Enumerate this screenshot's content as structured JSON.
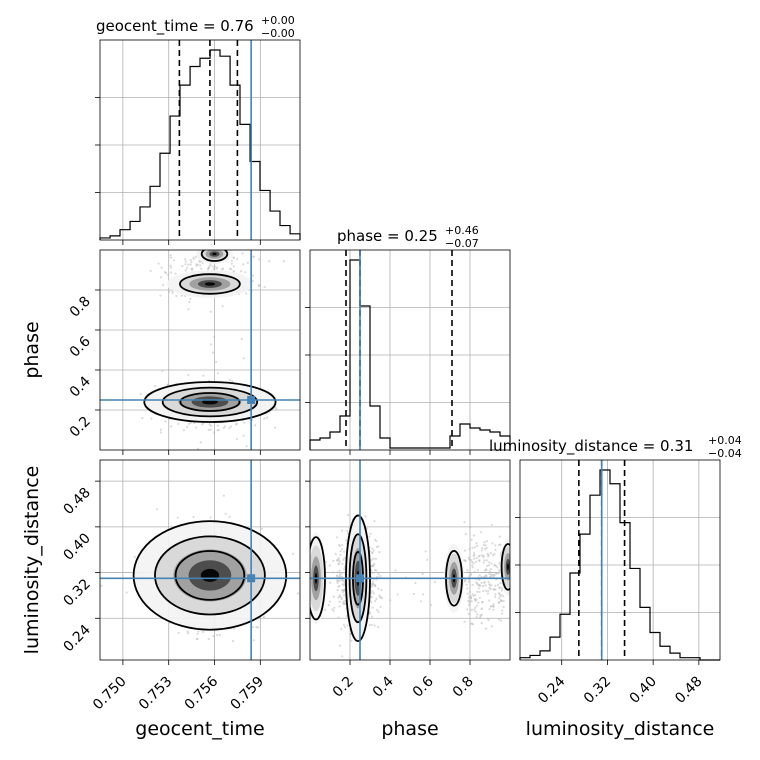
{
  "chart_data": {
    "type": "corner",
    "parameters": [
      "geocent_time",
      "phase",
      "luminosity_distance"
    ],
    "truths": {
      "geocent_time": 0.7584,
      "phase": 0.25,
      "luminosity_distance": 0.31
    },
    "colors": {
      "truth": "#4682b4",
      "lines": "#000000",
      "grid": "#b0b0b0",
      "points": "#bbbbbb"
    },
    "grid": true,
    "titles": {
      "geocent_time": {
        "prefix": "geocent_time = 0.76",
        "plus": "+0.00",
        "minus": "−0.00"
      },
      "phase": {
        "prefix": "phase = 0.25",
        "plus": "+0.46",
        "minus": "−0.07"
      },
      "luminosity_distance": {
        "prefix": "luminosity_distance = 0.31",
        "plus": "+0.04",
        "minus": "−0.04"
      }
    },
    "axes": {
      "geocent_time": {
        "range": [
          0.7485,
          0.7616
        ],
        "ticks": [
          0.75,
          0.753,
          0.756,
          0.759
        ],
        "tick_labels": [
          "0.750",
          "0.753",
          "0.756",
          "0.759"
        ],
        "xlabel": "geocent_time"
      },
      "phase": {
        "range": [
          0.0,
          1.0
        ],
        "ticks": [
          0.2,
          0.4,
          0.6,
          0.8
        ],
        "tick_labels": [
          "0.2",
          "0.4",
          "0.6",
          "0.8"
        ],
        "xlabel": "phase",
        "ylabel": "phase"
      },
      "luminosity_distance": {
        "range": [
          0.167,
          0.517
        ],
        "ticks": [
          0.24,
          0.32,
          0.4,
          0.48
        ],
        "tick_labels": [
          "0.24",
          "0.32",
          "0.40",
          "0.48"
        ],
        "xlabel": "luminosity_distance",
        "ylabel": "luminosity_distance"
      }
    },
    "histograms": {
      "geocent_time": {
        "edges": [
          0.7485,
          0.74916,
          0.74981,
          0.75047,
          0.75112,
          0.75178,
          0.75243,
          0.75309,
          0.75374,
          0.7544,
          0.75505,
          0.75571,
          0.75636,
          0.75702,
          0.75767,
          0.75833,
          0.75898,
          0.75964,
          0.76029,
          0.76095,
          0.7616
        ],
        "counts": [
          0.01,
          0.02,
          0.05,
          0.09,
          0.16,
          0.26,
          0.42,
          0.6,
          0.75,
          0.84,
          0.88,
          0.92,
          0.89,
          0.75,
          0.56,
          0.38,
          0.24,
          0.14,
          0.07,
          0.03
        ],
        "quantiles": [
          0.7537,
          0.7557,
          0.7575
        ]
      },
      "phase": {
        "edges": [
          0.0,
          0.05,
          0.1,
          0.15,
          0.2,
          0.25,
          0.3,
          0.35,
          0.4,
          0.45,
          0.5,
          0.55,
          0.6,
          0.65,
          0.7,
          0.75,
          0.8,
          0.85,
          0.9,
          0.95,
          1.0
        ],
        "counts": [
          0.05,
          0.06,
          0.09,
          0.17,
          0.95,
          0.72,
          0.22,
          0.06,
          0.01,
          0.01,
          0.01,
          0.01,
          0.01,
          0.01,
          0.07,
          0.13,
          0.11,
          0.1,
          0.09,
          0.07
        ],
        "quantiles": [
          0.18,
          0.25,
          0.71
        ]
      },
      "luminosity_distance": {
        "edges": [
          0.167,
          0.1845,
          0.202,
          0.2195,
          0.237,
          0.2545,
          0.272,
          0.2895,
          0.307,
          0.3245,
          0.342,
          0.3595,
          0.377,
          0.3945,
          0.412,
          0.4295,
          0.447,
          0.4645,
          0.482,
          0.4995,
          0.517
        ],
        "counts": [
          0.01,
          0.02,
          0.04,
          0.1,
          0.2,
          0.38,
          0.55,
          0.72,
          0.83,
          0.77,
          0.6,
          0.4,
          0.23,
          0.12,
          0.06,
          0.03,
          0.01,
          0.01,
          0.0,
          0.0
        ],
        "quantiles": [
          0.27,
          0.31,
          0.35
        ]
      }
    }
  }
}
